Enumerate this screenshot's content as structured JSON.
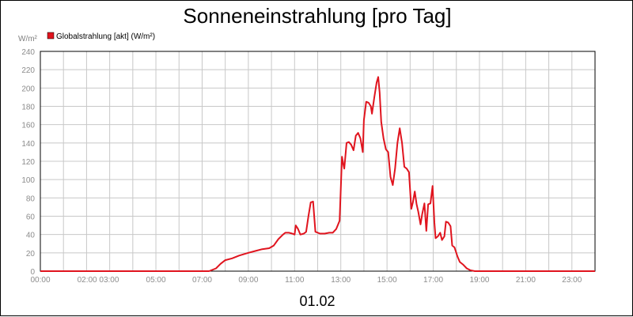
{
  "colors": {
    "series": "#e0141e",
    "grid": "#c8c8c8",
    "axis": "#000000",
    "tick": "#8c8c8c"
  },
  "chart_data": {
    "type": "line",
    "title": "Sonneneinstrahlung [pro Tag]",
    "ylabel": "W/m²",
    "xlabel": "01.02",
    "legend_position": "top-left",
    "grid": true,
    "xlim": [
      0,
      24
    ],
    "ylim": [
      0,
      240
    ],
    "y_ticks": [
      0,
      20,
      40,
      60,
      80,
      100,
      120,
      140,
      160,
      180,
      200,
      220,
      240
    ],
    "y_tick_labels": [
      "0",
      "20",
      "40",
      "60",
      "80",
      "100",
      "120",
      "140",
      "160",
      "180",
      "200",
      "220",
      "240"
    ],
    "x_ticks": [
      0,
      1,
      2,
      3,
      4,
      5,
      6,
      7,
      8,
      9,
      10,
      11,
      12,
      13,
      14,
      15,
      16,
      17,
      18,
      19,
      20,
      21,
      22,
      23,
      24
    ],
    "x_tick_labels": [
      {
        "x": 0,
        "label": "00:00"
      },
      {
        "x": 2.5,
        "label": "02:00 03:00"
      },
      {
        "x": 5,
        "label": "05:00"
      },
      {
        "x": 7,
        "label": "07:00"
      },
      {
        "x": 9,
        "label": "09:00"
      },
      {
        "x": 11,
        "label": "11:00"
      },
      {
        "x": 13,
        "label": "13:00"
      },
      {
        "x": 15,
        "label": "15:00"
      },
      {
        "x": 17,
        "label": "17:00"
      },
      {
        "x": 19,
        "label": "19:00"
      },
      {
        "x": 21,
        "label": "21:00"
      },
      {
        "x": 23,
        "label": "23:00"
      }
    ],
    "series": [
      {
        "name": "Globalstrahlung [akt] (W/m²)",
        "color": "#e0141e",
        "points": [
          [
            0,
            0
          ],
          [
            7.3,
            0
          ],
          [
            7.6,
            3
          ],
          [
            7.8,
            8
          ],
          [
            8.0,
            12
          ],
          [
            8.3,
            14
          ],
          [
            8.6,
            17
          ],
          [
            9.0,
            20
          ],
          [
            9.3,
            22
          ],
          [
            9.6,
            24
          ],
          [
            9.9,
            25
          ],
          [
            10.1,
            28
          ],
          [
            10.3,
            35
          ],
          [
            10.5,
            40
          ],
          [
            10.6,
            42
          ],
          [
            10.75,
            42
          ],
          [
            10.9,
            41
          ],
          [
            11.0,
            40
          ],
          [
            11.05,
            50
          ],
          [
            11.15,
            46
          ],
          [
            11.25,
            40
          ],
          [
            11.4,
            41
          ],
          [
            11.5,
            43
          ],
          [
            11.6,
            60
          ],
          [
            11.7,
            75
          ],
          [
            11.8,
            76
          ],
          [
            11.9,
            43
          ],
          [
            12.1,
            41
          ],
          [
            12.3,
            41
          ],
          [
            12.5,
            42
          ],
          [
            12.65,
            42
          ],
          [
            12.8,
            46
          ],
          [
            12.95,
            55
          ],
          [
            13.05,
            125
          ],
          [
            13.1,
            118
          ],
          [
            13.15,
            112
          ],
          [
            13.25,
            140
          ],
          [
            13.35,
            141
          ],
          [
            13.45,
            138
          ],
          [
            13.55,
            132
          ],
          [
            13.65,
            148
          ],
          [
            13.75,
            151
          ],
          [
            13.85,
            145
          ],
          [
            13.95,
            130
          ],
          [
            14.0,
            165
          ],
          [
            14.1,
            185
          ],
          [
            14.2,
            184
          ],
          [
            14.3,
            180
          ],
          [
            14.35,
            172
          ],
          [
            14.45,
            190
          ],
          [
            14.55,
            206
          ],
          [
            14.62,
            212
          ],
          [
            14.68,
            195
          ],
          [
            14.75,
            163
          ],
          [
            14.85,
            145
          ],
          [
            14.95,
            133
          ],
          [
            15.05,
            130
          ],
          [
            15.15,
            103
          ],
          [
            15.25,
            94
          ],
          [
            15.35,
            112
          ],
          [
            15.45,
            140
          ],
          [
            15.55,
            156
          ],
          [
            15.65,
            140
          ],
          [
            15.75,
            114
          ],
          [
            15.85,
            112
          ],
          [
            15.95,
            108
          ],
          [
            16.05,
            68
          ],
          [
            16.12,
            75
          ],
          [
            16.2,
            87
          ],
          [
            16.28,
            73
          ],
          [
            16.35,
            65
          ],
          [
            16.45,
            51
          ],
          [
            16.52,
            62
          ],
          [
            16.62,
            74
          ],
          [
            16.7,
            44
          ],
          [
            16.78,
            73
          ],
          [
            16.88,
            74
          ],
          [
            16.97,
            93
          ],
          [
            17.05,
            53
          ],
          [
            17.1,
            36
          ],
          [
            17.2,
            38
          ],
          [
            17.3,
            42
          ],
          [
            17.38,
            34
          ],
          [
            17.48,
            38
          ],
          [
            17.55,
            54
          ],
          [
            17.65,
            53
          ],
          [
            17.75,
            49
          ],
          [
            17.82,
            28
          ],
          [
            17.92,
            26
          ],
          [
            18.05,
            16
          ],
          [
            18.15,
            10
          ],
          [
            18.3,
            7
          ],
          [
            18.45,
            3
          ],
          [
            18.6,
            1
          ],
          [
            18.8,
            0
          ],
          [
            24,
            0
          ]
        ]
      }
    ]
  }
}
